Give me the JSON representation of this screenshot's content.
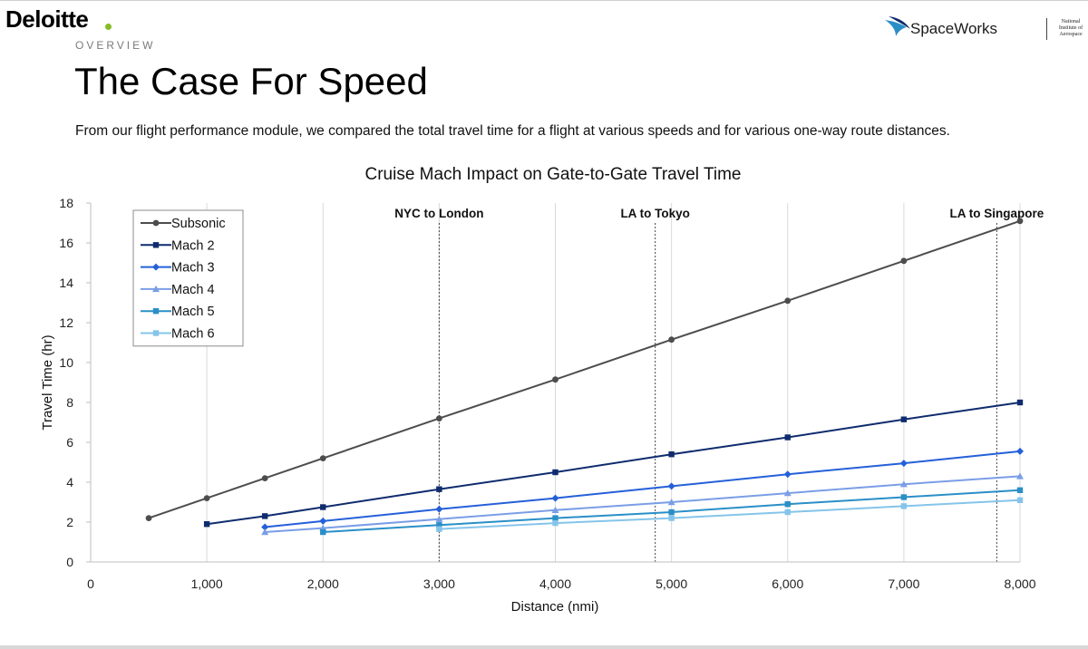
{
  "header": {
    "brand": "Deloitte",
    "brand_accent": "#86bc25",
    "section_label": "OVERVIEW",
    "title": "The Case For Speed",
    "subtitle": "From our flight performance module, we compared the total travel time for a flight at various speeds and for various one-way route distances.",
    "partner_logo": "SpaceWorks",
    "partner_institute": "National Institute of Aerospace"
  },
  "chart_data": {
    "type": "line",
    "title": "Cruise Mach Impact on Gate-to-Gate Travel Time",
    "xlabel": "Distance (nmi)",
    "ylabel": "Travel Time (hr)",
    "xlim": [
      0,
      8000
    ],
    "ylim": [
      0,
      18
    ],
    "xticks": [
      0,
      1000,
      2000,
      3000,
      4000,
      5000,
      6000,
      7000,
      8000
    ],
    "xtick_labels": [
      "0",
      "1,000",
      "2,000",
      "3,000",
      "4,000",
      "5,000",
      "6,000",
      "7,000",
      "8,000"
    ],
    "yticks": [
      0,
      2,
      4,
      6,
      8,
      10,
      12,
      14,
      16,
      18
    ],
    "ytick_labels": [
      "0",
      "2",
      "4",
      "6",
      "8",
      "10",
      "12",
      "14",
      "16",
      "18"
    ],
    "grid": "vertical",
    "legend_position": "top-left",
    "series": [
      {
        "name": "Subsonic",
        "color": "#4d4d4d",
        "marker": "circle",
        "x": [
          500,
          1000,
          1500,
          2000,
          3000,
          4000,
          5000,
          6000,
          7000,
          8000
        ],
        "y": [
          2.2,
          3.2,
          4.2,
          5.2,
          7.2,
          9.15,
          11.15,
          13.1,
          15.1,
          17.1
        ]
      },
      {
        "name": "Mach 2",
        "color": "#0f2c6e",
        "marker": "square",
        "x": [
          1000,
          1500,
          2000,
          3000,
          4000,
          5000,
          6000,
          7000,
          8000
        ],
        "y": [
          1.9,
          2.3,
          2.75,
          3.65,
          4.5,
          5.4,
          6.25,
          7.15,
          8.0
        ]
      },
      {
        "name": "Mach 3",
        "color": "#2560d9",
        "marker": "diamond",
        "x": [
          1500,
          2000,
          3000,
          4000,
          5000,
          6000,
          7000,
          8000
        ],
        "y": [
          1.75,
          2.05,
          2.65,
          3.2,
          3.8,
          4.4,
          4.95,
          5.55
        ]
      },
      {
        "name": "Mach 4",
        "color": "#7a9ee6",
        "marker": "triangle",
        "x": [
          1500,
          2000,
          3000,
          4000,
          5000,
          6000,
          7000,
          8000
        ],
        "y": [
          1.5,
          1.7,
          2.15,
          2.6,
          3.0,
          3.45,
          3.9,
          4.3
        ]
      },
      {
        "name": "Mach 5",
        "color": "#2a8fc7",
        "marker": "square",
        "x": [
          2000,
          3000,
          4000,
          5000,
          6000,
          7000,
          8000
        ],
        "y": [
          1.5,
          1.85,
          2.2,
          2.5,
          2.9,
          3.25,
          3.6
        ]
      },
      {
        "name": "Mach 6",
        "color": "#85c4ea",
        "marker": "square",
        "x": [
          3000,
          4000,
          5000,
          6000,
          7000,
          8000
        ],
        "y": [
          1.65,
          1.95,
          2.2,
          2.5,
          2.8,
          3.1
        ]
      }
    ],
    "annotations": [
      {
        "label": "NYC to London",
        "x": 3000
      },
      {
        "label": "LA to Tokyo",
        "x": 4860
      },
      {
        "label": "LA to Singapore",
        "x": 7800
      }
    ]
  }
}
